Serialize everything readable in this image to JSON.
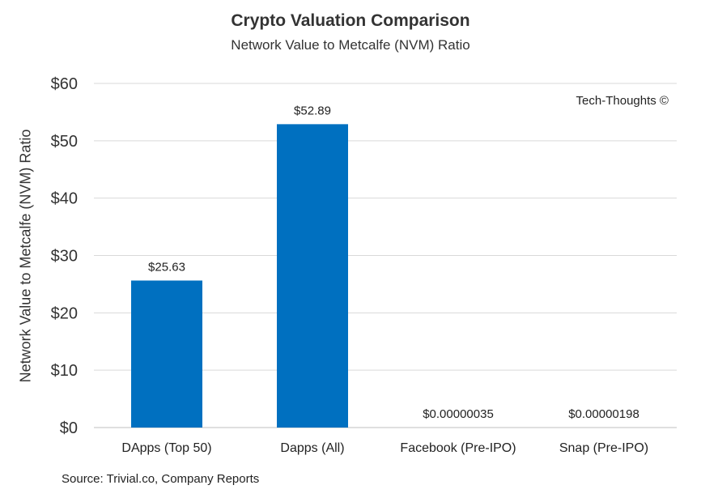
{
  "chart_data": {
    "type": "bar",
    "title": "Crypto Valuation Comparison",
    "subtitle": "Network Value to Metcalfe (NVM) Ratio",
    "ylabel": "Network Value to Metcalfe (NVM) Ratio",
    "xlabel": "",
    "categories": [
      "DApps (Top 50)",
      "Dapps (All)",
      "Facebook (Pre-IPO)",
      "Snap (Pre-IPO)"
    ],
    "values": [
      25.63,
      52.89,
      3.5e-07,
      1.98e-06
    ],
    "data_labels": [
      "$25.63",
      "$52.89",
      "$0.00000035",
      "$0.00000198"
    ],
    "ylim": [
      0,
      60
    ],
    "yticks": [
      0,
      10,
      20,
      30,
      40,
      50,
      60
    ],
    "ytick_labels": [
      "$0",
      "$10",
      "$20",
      "$30",
      "$40",
      "$50",
      "$60"
    ],
    "grid": true,
    "bar_color": "#0070C0",
    "grid_color": "#D9D9D9"
  },
  "watermark": "Tech-Thoughts ©",
  "source": "Source: Trivial.co, Company Reports"
}
